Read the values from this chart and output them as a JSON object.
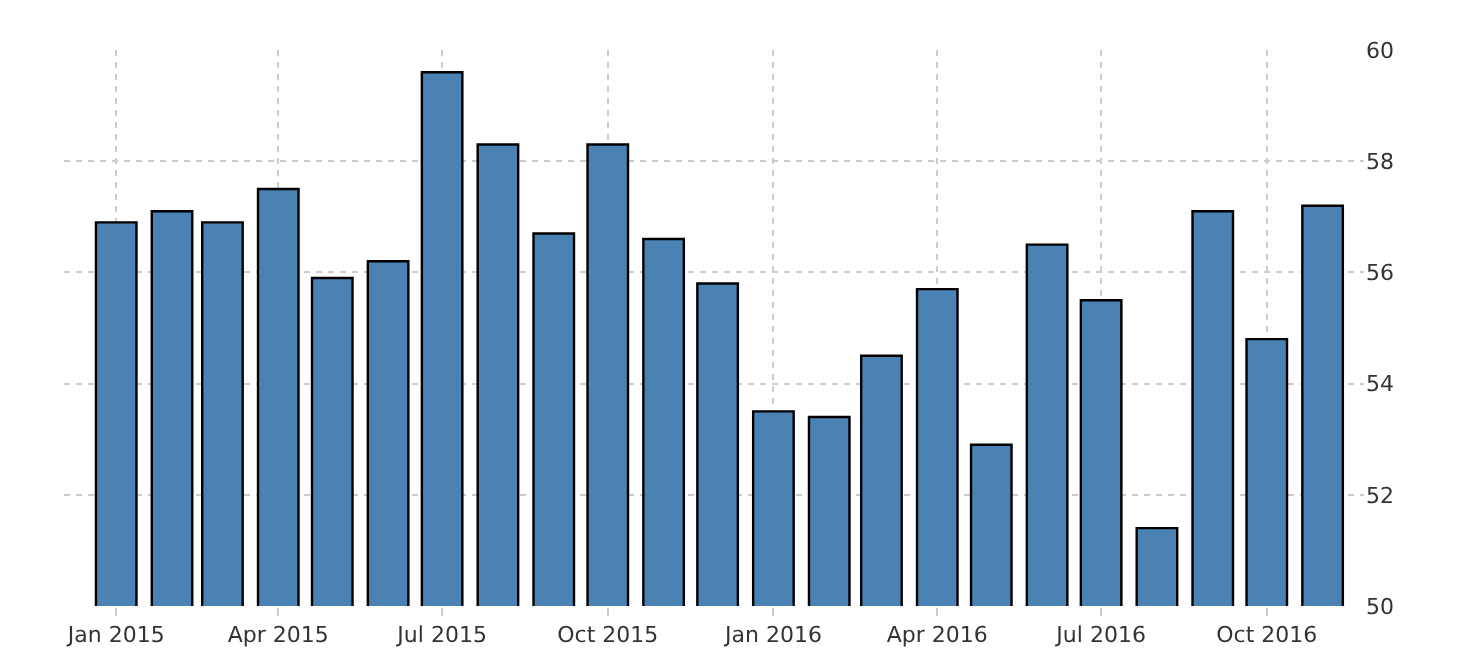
{
  "chart_data": {
    "type": "bar",
    "x": [
      "2015-01",
      "2015-02",
      "2015-03",
      "2015-04",
      "2015-05",
      "2015-06",
      "2015-07",
      "2015-08",
      "2015-09",
      "2015-10",
      "2015-11",
      "2015-12",
      "2016-01",
      "2016-02",
      "2016-03",
      "2016-04",
      "2016-05",
      "2016-06",
      "2016-07",
      "2016-08",
      "2016-09",
      "2016-10",
      "2016-11"
    ],
    "values": [
      56.9,
      57.1,
      56.9,
      57.5,
      55.9,
      56.2,
      59.6,
      58.3,
      56.7,
      58.3,
      56.6,
      55.8,
      53.5,
      53.4,
      54.5,
      55.7,
      52.9,
      56.5,
      55.5,
      51.4,
      57.1,
      54.8,
      57.2
    ],
    "color": "#4a82b4",
    "ylim": [
      50,
      60
    ],
    "yticks": [
      50,
      52,
      54,
      56,
      58,
      60
    ],
    "xlim": [
      "2014-12-03",
      "2016-11-24"
    ],
    "xticks": [
      {
        "value": "2015-01",
        "label": "Jan 2015"
      },
      {
        "value": "2015-04",
        "label": "Apr 2015"
      },
      {
        "value": "2015-07",
        "label": "Jul 2015"
      },
      {
        "value": "2015-10",
        "label": "Oct 2015"
      },
      {
        "value": "2016-01",
        "label": "Jan 2016"
      },
      {
        "value": "2016-04",
        "label": "Apr 2016"
      },
      {
        "value": "2016-07",
        "label": "Jul 2016"
      },
      {
        "value": "2016-10",
        "label": "Oct 2016"
      }
    ],
    "grid": true,
    "legend": false
  }
}
